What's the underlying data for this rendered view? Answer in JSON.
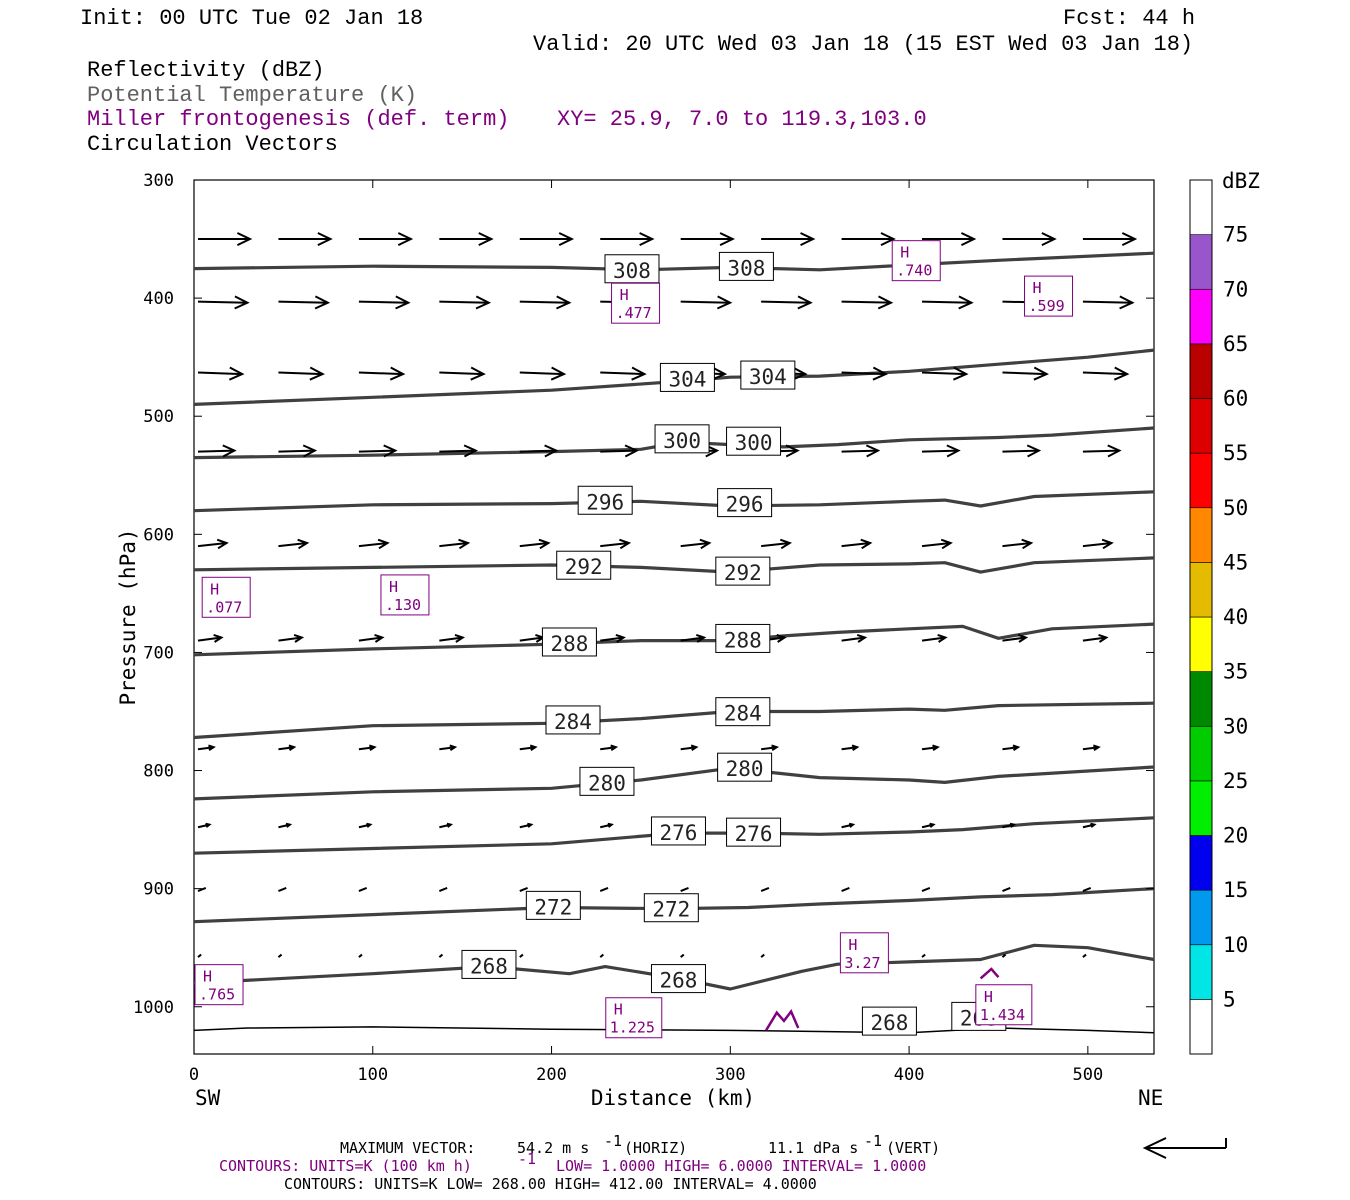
{
  "header": {
    "init": "Init: 00 UTC Tue 02 Jan 18",
    "fcst": "Fcst:   44 h",
    "valid": "Valid: 20 UTC Wed 03 Jan 18 (15 EST Wed 03 Jan 18)",
    "field1": "Reflectivity (dBZ)",
    "field2": "Potential Temperature (K)",
    "field3": "Miller frontogenesis (def. term)",
    "xy": "XY=  25.9,  7.0 to 119.3,103.0",
    "field4": "Circulation Vectors"
  },
  "colors": {
    "frontogenesis": "#800080",
    "theta": "#404040",
    "field2_text": "#606060"
  },
  "chart_data": {
    "type": "cross-section",
    "xlabel": "Distance (km)",
    "ylabel": "Pressure (hPa)",
    "xlim": [
      0,
      537
    ],
    "ylim": [
      1040,
      300
    ],
    "x_ticks": [
      "0",
      "100",
      "200",
      "300",
      "400",
      "500"
    ],
    "y_ticks": [
      "300",
      "400",
      "500",
      "600",
      "700",
      "800",
      "900",
      "1000"
    ],
    "x_tick_values": [
      0,
      100,
      200,
      300,
      400,
      500
    ],
    "y_tick_values": [
      300,
      400,
      500,
      600,
      700,
      800,
      900,
      1000
    ],
    "left_end": "SW",
    "right_end": "NE",
    "theta_contours": [
      {
        "label": "308",
        "label_positions": [
          [
            245,
            376
          ],
          [
            309,
            374
          ]
        ],
        "points": [
          [
            0,
            375
          ],
          [
            100,
            373
          ],
          [
            200,
            374
          ],
          [
            250,
            376
          ],
          [
            300,
            374
          ],
          [
            350,
            376
          ],
          [
            400,
            372
          ],
          [
            450,
            368
          ],
          [
            537,
            362
          ]
        ]
      },
      {
        "label": "304",
        "label_positions": [
          [
            276,
            468
          ],
          [
            321,
            466
          ]
        ],
        "points": [
          [
            0,
            490
          ],
          [
            100,
            484
          ],
          [
            200,
            478
          ],
          [
            276,
            470
          ],
          [
            300,
            467
          ],
          [
            350,
            466
          ],
          [
            400,
            462
          ],
          [
            450,
            456
          ],
          [
            500,
            450
          ],
          [
            537,
            444
          ]
        ]
      },
      {
        "label": "300",
        "label_positions": [
          [
            273,
            520
          ],
          [
            313,
            522
          ]
        ],
        "points": [
          [
            0,
            535
          ],
          [
            100,
            533
          ],
          [
            200,
            530
          ],
          [
            250,
            528
          ],
          [
            273,
            522
          ],
          [
            300,
            524
          ],
          [
            330,
            526
          ],
          [
            360,
            524
          ],
          [
            400,
            520
          ],
          [
            450,
            518
          ],
          [
            480,
            516
          ],
          [
            537,
            510
          ]
        ]
      },
      {
        "label": "296",
        "label_positions": [
          [
            230,
            572
          ],
          [
            308,
            574
          ]
        ],
        "points": [
          [
            0,
            580
          ],
          [
            100,
            575
          ],
          [
            200,
            574
          ],
          [
            250,
            572
          ],
          [
            300,
            576
          ],
          [
            350,
            575
          ],
          [
            400,
            572
          ],
          [
            420,
            571
          ],
          [
            440,
            576
          ],
          [
            470,
            568
          ],
          [
            537,
            564
          ]
        ]
      },
      {
        "label": "292",
        "label_positions": [
          [
            218,
            627
          ],
          [
            307,
            632
          ]
        ],
        "points": [
          [
            0,
            630
          ],
          [
            100,
            628
          ],
          [
            200,
            626
          ],
          [
            250,
            628
          ],
          [
            300,
            632
          ],
          [
            350,
            626
          ],
          [
            400,
            625
          ],
          [
            420,
            624
          ],
          [
            440,
            632
          ],
          [
            470,
            624
          ],
          [
            537,
            620
          ]
        ]
      },
      {
        "label": "288",
        "label_positions": [
          [
            210,
            692
          ],
          [
            307,
            689
          ]
        ],
        "points": [
          [
            0,
            702
          ],
          [
            100,
            697
          ],
          [
            200,
            693
          ],
          [
            250,
            690
          ],
          [
            300,
            690
          ],
          [
            330,
            686
          ],
          [
            360,
            683
          ],
          [
            400,
            680
          ],
          [
            430,
            678
          ],
          [
            450,
            688
          ],
          [
            480,
            680
          ],
          [
            537,
            676
          ]
        ]
      },
      {
        "label": "284",
        "label_positions": [
          [
            212,
            758
          ],
          [
            307,
            751
          ]
        ],
        "points": [
          [
            0,
            772
          ],
          [
            100,
            762
          ],
          [
            200,
            760
          ],
          [
            250,
            756
          ],
          [
            300,
            750
          ],
          [
            350,
            750
          ],
          [
            400,
            748
          ],
          [
            420,
            749
          ],
          [
            450,
            745
          ],
          [
            537,
            743
          ]
        ]
      },
      {
        "label": "280",
        "label_positions": [
          [
            231,
            810
          ],
          [
            308,
            798
          ]
        ],
        "points": [
          [
            0,
            824
          ],
          [
            100,
            818
          ],
          [
            200,
            815
          ],
          [
            250,
            808
          ],
          [
            300,
            798
          ],
          [
            350,
            806
          ],
          [
            400,
            808
          ],
          [
            420,
            810
          ],
          [
            450,
            805
          ],
          [
            537,
            797
          ]
        ]
      },
      {
        "label": "276",
        "label_positions": [
          [
            271,
            852
          ],
          [
            313,
            853
          ]
        ],
        "points": [
          [
            0,
            870
          ],
          [
            100,
            866
          ],
          [
            200,
            862
          ],
          [
            271,
            853
          ],
          [
            313,
            853
          ],
          [
            350,
            854
          ],
          [
            400,
            852
          ],
          [
            430,
            850
          ],
          [
            470,
            845
          ],
          [
            537,
            840
          ]
        ]
      },
      {
        "label": "272",
        "label_positions": [
          [
            201,
            915
          ],
          [
            267,
            917
          ]
        ],
        "points": [
          [
            0,
            928
          ],
          [
            100,
            922
          ],
          [
            200,
            916
          ],
          [
            267,
            917
          ],
          [
            310,
            916
          ],
          [
            350,
            913
          ],
          [
            400,
            910
          ],
          [
            440,
            907
          ],
          [
            480,
            905
          ],
          [
            537,
            900
          ]
        ]
      },
      {
        "label": "268",
        "label_positions": [
          [
            165,
            965
          ],
          [
            271,
            977
          ],
          [
            389,
            1013
          ],
          [
            439,
            1009
          ]
        ],
        "points": [
          [
            0,
            980
          ],
          [
            100,
            972
          ],
          [
            165,
            966
          ],
          [
            210,
            972
          ],
          [
            230,
            966
          ],
          [
            271,
            976
          ],
          [
            300,
            985
          ],
          [
            340,
            970
          ],
          [
            360,
            964
          ],
          [
            400,
            962
          ],
          [
            440,
            960
          ],
          [
            470,
            948
          ],
          [
            500,
            950
          ],
          [
            537,
            960
          ]
        ]
      }
    ],
    "frontogenesis_maxima": [
      {
        "label": "H",
        "value": ".740",
        "x": 404,
        "p": 370
      },
      {
        "label": "H",
        "value": ".477",
        "x": 247,
        "p": 406
      },
      {
        "label": "H",
        "value": ".599",
        "x": 478,
        "p": 400
      },
      {
        "label": "H",
        "value": ".077",
        "x": 18,
        "p": 655
      },
      {
        "label": "H",
        "value": ".130",
        "x": 118,
        "p": 653
      },
      {
        "label": "H",
        "value": "3.27",
        "x": 375,
        "p": 956
      },
      {
        "label": "H",
        "value": ".765",
        "x": 14,
        "p": 983
      },
      {
        "label": "H",
        "value": "1.434",
        "x": 453,
        "p": 1000
      },
      {
        "label": "H",
        "value": "1.225",
        "x": 246,
        "p": 1011
      }
    ],
    "vector_levels": [
      {
        "p": 350,
        "u": 1.0,
        "w": 0.0
      },
      {
        "p": 403,
        "u": 0.95,
        "w": -0.02
      },
      {
        "p": 463,
        "u": 0.85,
        "w": -0.03
      },
      {
        "p": 530,
        "u": 0.7,
        "w": 0.02
      },
      {
        "p": 610,
        "u": 0.55,
        "w": 0.06
      },
      {
        "p": 690,
        "u": 0.45,
        "w": 0.06
      },
      {
        "p": 782,
        "u": 0.3,
        "w": 0.04
      },
      {
        "p": 848,
        "u": 0.22,
        "w": 0.05
      },
      {
        "p": 902,
        "u": 0.15,
        "w": 0.06
      },
      {
        "p": 958,
        "u": 0.06,
        "w": 0.05
      }
    ],
    "colorbar": {
      "title": "dBZ",
      "labels": [
        "5",
        "10",
        "15",
        "20",
        "25",
        "30",
        "35",
        "40",
        "45",
        "50",
        "55",
        "60",
        "65",
        "70",
        "75"
      ],
      "colors": [
        "#ffffff",
        "#00e5e5",
        "#0099ee",
        "#0000ee",
        "#00ee00",
        "#00cc00",
        "#008800",
        "#ffff00",
        "#e5bb00",
        "#ff8800",
        "#ff0000",
        "#dd0000",
        "#bb0000",
        "#ff00ff",
        "#9955cc",
        "#ffffff"
      ]
    }
  },
  "footer": {
    "max_vector_label": "MAXIMUM VECTOR:",
    "max_vector_horiz": "54.2 m s",
    "horiz_exp": "-1",
    "horiz_tag": "(HORIZ)",
    "max_vector_vert": "11.1 dPa s",
    "vert_exp": "-1",
    "vert_tag": "(VERT)",
    "contours1_a": "CONTOURS:  UNITS=K (100 km h)",
    "contours1_exp": "-1",
    "contours1_b": "LOW=   1.0000      HIGH=  6.0000      INTERVAL=   1.0000",
    "contours2": "CONTOURS:  UNITS=K  LOW=  268.00       HIGH=  412.00       INTERVAL=    4.0000"
  }
}
